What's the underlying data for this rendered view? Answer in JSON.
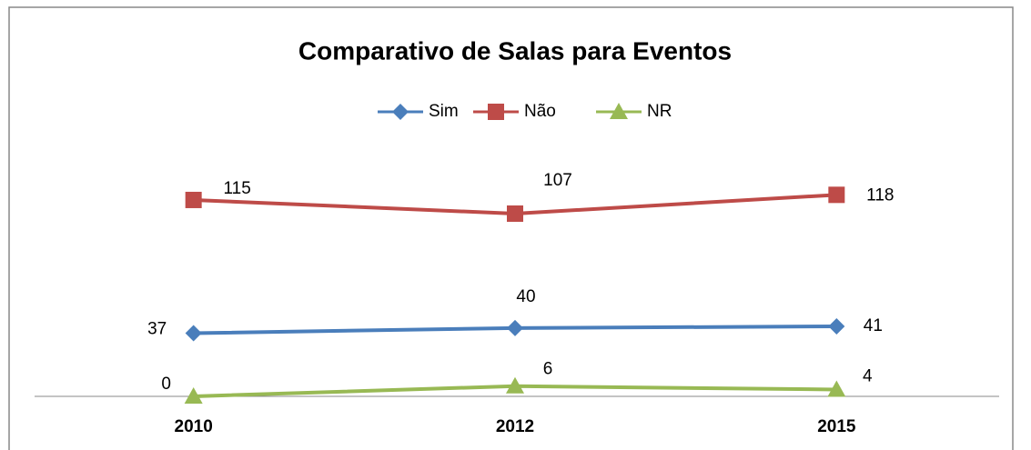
{
  "chart_data": {
    "type": "line",
    "title": "Comparativo de Salas para Eventos",
    "categories": [
      "2010",
      "2012",
      "2015"
    ],
    "series": [
      {
        "name": "Sim",
        "color": "#4a7ebb",
        "marker": "diamond",
        "values": [
          37,
          40,
          41
        ]
      },
      {
        "name": "Não",
        "color": "#be4b48",
        "marker": "square",
        "values": [
          115,
          107,
          118
        ]
      },
      {
        "name": "NR",
        "color": "#98b954",
        "marker": "triangle",
        "values": [
          0,
          6,
          4
        ]
      }
    ],
    "ylim": [
      0,
      140
    ],
    "legend": "top",
    "grid": false
  }
}
